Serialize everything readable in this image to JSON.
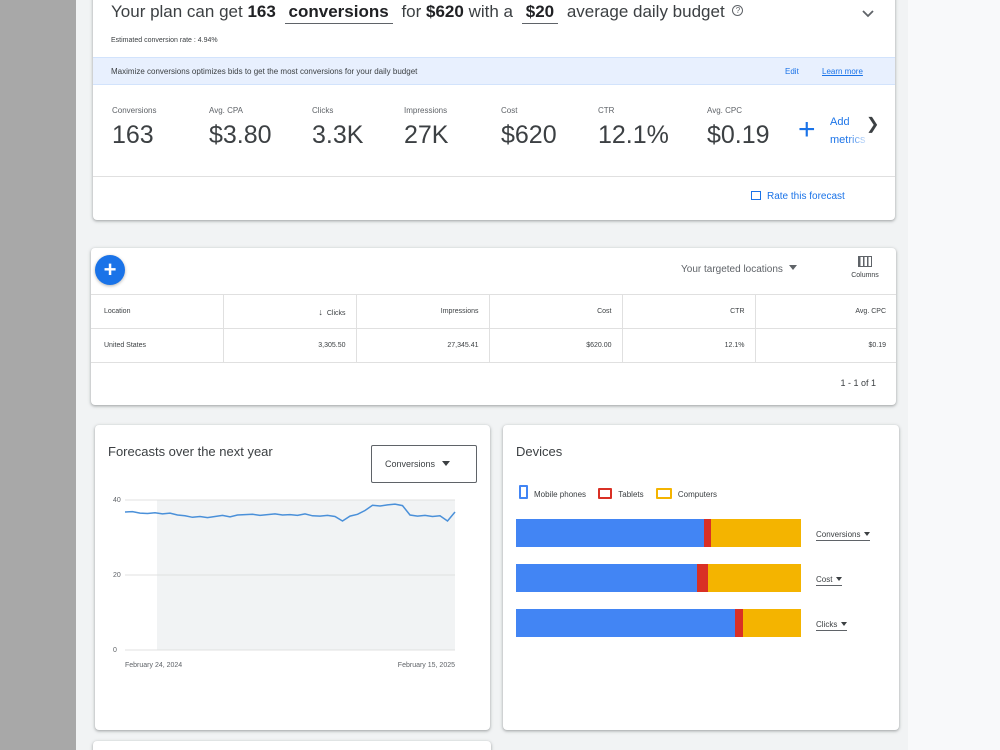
{
  "colors": {
    "accent": "#1a73e8",
    "mobile": "#4285f4",
    "tablets": "#d93025",
    "computers": "#f4b400"
  },
  "forecast": {
    "headline_prefix": "Your plan can get",
    "conversions_value": "163",
    "conversions_word": "conversions",
    "for_text": "for",
    "cost": "$620",
    "with_text": "with a",
    "daily_budget": "$20",
    "budget_suffix": "average daily budget",
    "help_icon": "help-circle-icon",
    "estimated_rate": "Estimated conversion rate : 4.94%",
    "banner_text": "Maximize conversions optimizes bids to get the most conversions for your daily budget",
    "edit_label": "Edit",
    "learn_more_label": "Learn more",
    "metrics": [
      {
        "label": "Conversions",
        "value": "163"
      },
      {
        "label": "Avg. CPA",
        "value": "$3.80"
      },
      {
        "label": "Clicks",
        "value": "3.3K"
      },
      {
        "label": "Impressions",
        "value": "27K"
      },
      {
        "label": "Cost",
        "value": "$620"
      },
      {
        "label": "CTR",
        "value": "12.1%"
      },
      {
        "label": "Avg. CPC",
        "value": "$0.19"
      }
    ],
    "add_metrics_line1": "Add",
    "add_metrics_line2": "metrics",
    "rate_forecast_label": "Rate this forecast"
  },
  "locations_table": {
    "location_selector": "Your targeted locations",
    "columns_label": "Columns",
    "headers": [
      "Location",
      "Clicks",
      "Impressions",
      "Cost",
      "CTR",
      "Avg. CPC"
    ],
    "rows": [
      [
        "United States",
        "3,305.50",
        "27,345.41",
        "$620.00",
        "12.1%",
        "$0.19"
      ]
    ],
    "sort_icon": "arrow-down-icon",
    "pagination": "1 - 1 of 1"
  },
  "trend": {
    "title": "Forecasts over the next year",
    "metric_selected": "Conversions"
  },
  "devices": {
    "title": "Devices",
    "legend": [
      "Mobile phones",
      "Tablets",
      "Computers"
    ],
    "selectors": [
      "Conversions",
      "Cost",
      "Clicks"
    ]
  },
  "chart_data": [
    {
      "type": "line",
      "x_start_label": "February 24, 2024",
      "x_end_label": "February 15, 2025",
      "yticks": [
        0,
        20,
        40
      ],
      "ylim": [
        0,
        40
      ],
      "grid": true,
      "values": [
        36.8,
        36.9,
        36.5,
        36.4,
        36.6,
        36.3,
        36.5,
        36.0,
        35.8,
        35.4,
        35.6,
        35.3,
        35.6,
        35.9,
        35.5,
        36.0,
        36.1,
        36.2,
        35.9,
        36.1,
        36.3,
        36.0,
        36.1,
        35.9,
        36.3,
        35.8,
        35.7,
        35.9,
        35.6,
        34.4,
        35.7,
        36.2,
        37.2,
        38.6,
        38.4,
        38.7,
        38.9,
        38.5,
        36.0,
        35.7,
        35.9,
        35.6,
        35.8,
        34.4,
        36.8
      ]
    },
    {
      "type": "bar",
      "stacked": true,
      "orientation": "horizontal",
      "categories": [
        "Conversions",
        "Cost",
        "Clicks"
      ],
      "series": [
        {
          "name": "Mobile phones",
          "values": [
            66,
            63.5,
            77
          ]
        },
        {
          "name": "Tablets",
          "values": [
            2.5,
            4,
            2.5
          ]
        },
        {
          "name": "Computers",
          "values": [
            31.5,
            32.5,
            20.5
          ]
        }
      ]
    }
  ]
}
